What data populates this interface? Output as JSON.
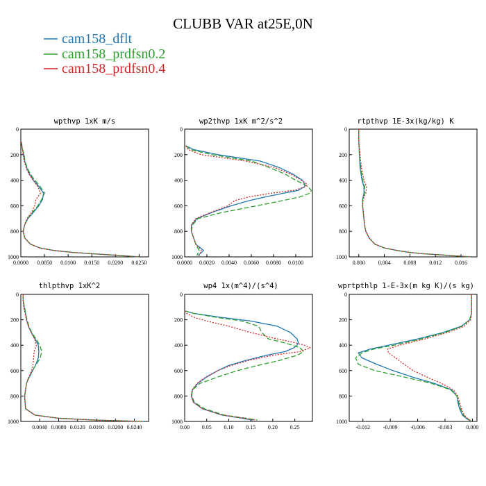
{
  "figure": {
    "title": "CLUBB VAR at25E,0N",
    "legend": [
      {
        "label": "cam158_dflt",
        "color": "#1f77b4",
        "dash": "solid"
      },
      {
        "label": "cam158_prdfsn0.2",
        "color": "#2ca02c",
        "dash": "longdash"
      },
      {
        "label": "cam158_prdfsn0.4",
        "color": "#d62728",
        "dash": "dot"
      }
    ]
  },
  "chart_data": [
    {
      "type": "line",
      "title": "wpthvp  1xK m/s",
      "xlim": [
        0,
        0.027
      ],
      "ylim": [
        1000,
        0
      ],
      "xticks": [
        0.0,
        0.005,
        0.01,
        0.015,
        0.02,
        0.025
      ],
      "xtick_labels": [
        "0.0000",
        "0.0050",
        "0.0100",
        "0.0150",
        "0.0200",
        "0.0250"
      ],
      "yticks": [
        0,
        200,
        400,
        600,
        800,
        1000
      ],
      "y": [
        100,
        150,
        200,
        250,
        300,
        350,
        400,
        450,
        500,
        550,
        600,
        650,
        700,
        750,
        800,
        850,
        900,
        930,
        950,
        965,
        975,
        985,
        992,
        1000
      ],
      "series": [
        {
          "name": "cam158_dflt",
          "x": [
            0.0001,
            0.0003,
            0.0006,
            0.0008,
            0.0012,
            0.0018,
            0.0027,
            0.0038,
            0.0048,
            0.0046,
            0.0038,
            0.0027,
            0.0015,
            0.0008,
            0.0005,
            0.0008,
            0.002,
            0.004,
            0.007,
            0.011,
            0.015,
            0.019,
            0.022,
            0.025
          ]
        },
        {
          "name": "cam158_prdfsn0.2",
          "x": [
            0.0001,
            0.0003,
            0.0007,
            0.0009,
            0.0013,
            0.002,
            0.003,
            0.0041,
            0.005,
            0.0044,
            0.0036,
            0.0025,
            0.0014,
            0.0008,
            0.0005,
            0.0008,
            0.002,
            0.004,
            0.007,
            0.011,
            0.015,
            0.019,
            0.022,
            0.025
          ]
        },
        {
          "name": "cam158_prdfsn0.4",
          "x": [
            0.0001,
            0.0003,
            0.0005,
            0.0007,
            0.0011,
            0.0017,
            0.0026,
            0.0036,
            0.0042,
            0.0032,
            0.0029,
            0.0023,
            0.0013,
            0.0008,
            0.0005,
            0.0008,
            0.002,
            0.004,
            0.007,
            0.011,
            0.015,
            0.019,
            0.022,
            0.025
          ]
        }
      ]
    },
    {
      "type": "line",
      "title": "wp2thvp  1xK m^2/s^2",
      "xlim": [
        0,
        0.0115
      ],
      "ylim": [
        1000,
        0
      ],
      "xticks": [
        0.0,
        0.002,
        0.004,
        0.006,
        0.008,
        0.01
      ],
      "xtick_labels": [
        "0.0000",
        "0.0020",
        "0.0040",
        "0.0060",
        "0.0080",
        "0.0100"
      ],
      "yticks": [
        0,
        200,
        400,
        600,
        800,
        1000
      ],
      "y": [
        130,
        160,
        200,
        250,
        300,
        350,
        400,
        430,
        450,
        480,
        500,
        530,
        560,
        600,
        650,
        700,
        750,
        800,
        850,
        900,
        950,
        990
      ],
      "series": [
        {
          "name": "cam158_dflt",
          "x": [
            0.0001,
            0.0008,
            0.003,
            0.0068,
            0.0085,
            0.0097,
            0.0106,
            0.0108,
            0.0108,
            0.0102,
            0.009,
            0.0073,
            0.0058,
            0.0042,
            0.0025,
            0.0011,
            0.0006,
            0.0006,
            0.0008,
            0.001,
            0.0017,
            0.0012
          ]
        },
        {
          "name": "cam158_prdfsn0.2",
          "x": [
            0.0001,
            0.0005,
            0.0025,
            0.006,
            0.0076,
            0.009,
            0.01,
            0.0107,
            0.0111,
            0.0114,
            0.0113,
            0.0104,
            0.0088,
            0.0065,
            0.0035,
            0.0012,
            0.0007,
            0.0006,
            0.0008,
            0.001,
            0.0013,
            0.0011
          ]
        },
        {
          "name": "cam158_prdfsn0.4",
          "x": [
            0.0001,
            0.0003,
            0.0015,
            0.0055,
            0.0081,
            0.0095,
            0.0105,
            0.011,
            0.0109,
            0.0098,
            0.0079,
            0.0058,
            0.0045,
            0.0039,
            0.0024,
            0.001,
            0.0006,
            0.0006,
            0.0008,
            0.001,
            0.0015,
            0.0013
          ]
        }
      ]
    },
    {
      "type": "line",
      "title": "rtpthvp  1E-3x(kg/kg) K",
      "xlim": [
        -0.0015,
        0.0185
      ],
      "ylim": [
        1000,
        0
      ],
      "xticks": [
        0.0,
        0.004,
        0.008,
        0.012,
        0.016
      ],
      "xtick_labels": [
        "0.000",
        "0.004",
        "0.008",
        "0.012",
        "0.016"
      ],
      "yticks": [
        0,
        200,
        400,
        600,
        800,
        1000
      ],
      "y": [
        0,
        100,
        200,
        300,
        400,
        450,
        500,
        550,
        600,
        650,
        700,
        750,
        800,
        850,
        900,
        930,
        950,
        965,
        975,
        985,
        992,
        1000
      ],
      "series": [
        {
          "name": "cam158_dflt",
          "x": [
            0.0,
            0.0,
            0.0001,
            0.0002,
            0.0005,
            0.0008,
            0.0008,
            0.0006,
            0.0006,
            0.0007,
            0.0008,
            0.0009,
            0.0011,
            0.0016,
            0.0025,
            0.004,
            0.006,
            0.008,
            0.01,
            0.013,
            0.015,
            0.0175
          ]
        },
        {
          "name": "cam158_prdfsn0.2",
          "x": [
            0.0,
            0.0,
            0.0001,
            0.0003,
            0.0006,
            0.0009,
            0.0009,
            0.0006,
            0.0006,
            0.0007,
            0.0008,
            0.0009,
            0.0011,
            0.0016,
            0.0025,
            0.004,
            0.006,
            0.008,
            0.01,
            0.013,
            0.015,
            0.0175
          ]
        },
        {
          "name": "cam158_prdfsn0.4",
          "x": [
            0.0,
            0.0,
            0.0002,
            0.0004,
            0.0008,
            0.0012,
            0.0011,
            0.0007,
            0.0006,
            0.0007,
            0.0008,
            0.0009,
            0.0011,
            0.0016,
            0.0025,
            0.004,
            0.006,
            0.008,
            0.01,
            0.013,
            0.015,
            0.0175
          ]
        }
      ]
    },
    {
      "type": "line",
      "title": "thlpthvp  1xK^2",
      "xlim": [
        0,
        0.027
      ],
      "ylim": [
        1000,
        0
      ],
      "xticks": [
        0.004,
        0.008,
        0.012,
        0.016,
        0.02,
        0.024
      ],
      "xtick_labels": [
        "0.0040",
        "0.0080",
        "0.0120",
        "0.0160",
        "0.0200",
        "0.0240"
      ],
      "yticks": [
        0,
        200,
        400,
        600,
        800,
        1000
      ],
      "y": [
        0,
        50,
        100,
        150,
        200,
        250,
        300,
        350,
        400,
        450,
        500,
        550,
        600,
        650,
        700,
        800,
        900,
        950,
        975,
        990,
        1000
      ],
      "series": [
        {
          "name": "cam158_dflt",
          "x": [
            0.0005,
            0.0005,
            0.0007,
            0.001,
            0.0012,
            0.0016,
            0.0022,
            0.003,
            0.0037,
            0.0038,
            0.0037,
            0.0032,
            0.0025,
            0.0018,
            0.0012,
            0.0008,
            0.001,
            0.003,
            0.008,
            0.016,
            0.026
          ]
        },
        {
          "name": "cam158_prdfsn0.2",
          "x": [
            0.0005,
            0.0005,
            0.0008,
            0.001,
            0.0013,
            0.0017,
            0.0023,
            0.0032,
            0.004,
            0.0044,
            0.0041,
            0.0033,
            0.0024,
            0.0017,
            0.0012,
            0.0008,
            0.001,
            0.003,
            0.008,
            0.016,
            0.026
          ]
        },
        {
          "name": "cam158_prdfsn0.4",
          "x": [
            0.0005,
            0.0005,
            0.0006,
            0.0009,
            0.0012,
            0.0016,
            0.0022,
            0.0029,
            0.0033,
            0.0028,
            0.0027,
            0.0026,
            0.0023,
            0.0017,
            0.0012,
            0.0008,
            0.001,
            0.003,
            0.008,
            0.016,
            0.026
          ]
        }
      ]
    },
    {
      "type": "line",
      "title": "wp4  1x(m^4)/(s^4)",
      "xlim": [
        0,
        0.29
      ],
      "ylim": [
        1000,
        0
      ],
      "xticks": [
        0.0,
        0.05,
        0.1,
        0.15,
        0.2,
        0.25
      ],
      "xtick_labels": [
        "0.00",
        "0.05",
        "0.10",
        "0.15",
        "0.20",
        "0.25"
      ],
      "yticks": [
        0,
        200,
        400,
        600,
        800,
        1000
      ],
      "y": [
        130,
        150,
        180,
        210,
        250,
        300,
        350,
        380,
        400,
        420,
        450,
        480,
        520,
        560,
        600,
        650,
        700,
        750,
        800,
        850,
        900,
        950,
        975,
        990
      ],
      "series": [
        {
          "name": "cam158_dflt",
          "x": [
            0.0,
            0.02,
            0.08,
            0.15,
            0.21,
            0.24,
            0.255,
            0.258,
            0.255,
            0.248,
            0.228,
            0.185,
            0.138,
            0.1,
            0.075,
            0.05,
            0.03,
            0.018,
            0.015,
            0.02,
            0.04,
            0.085,
            0.13,
            0.155
          ]
        },
        {
          "name": "cam158_prdfsn0.2",
          "x": [
            0.0,
            0.02,
            0.07,
            0.13,
            0.168,
            0.175,
            0.19,
            0.225,
            0.245,
            0.262,
            0.27,
            0.255,
            0.215,
            0.165,
            0.12,
            0.075,
            0.035,
            0.018,
            0.016,
            0.022,
            0.045,
            0.09,
            0.14,
            0.165
          ]
        },
        {
          "name": "cam158_prdfsn0.4",
          "x": [
            0.0,
            0.005,
            0.02,
            0.05,
            0.1,
            0.15,
            0.21,
            0.25,
            0.272,
            0.285,
            0.262,
            0.2,
            0.145,
            0.105,
            0.075,
            0.048,
            0.028,
            0.017,
            0.015,
            0.02,
            0.04,
            0.085,
            0.135,
            0.162
          ]
        }
      ]
    },
    {
      "type": "line",
      "title": "wprtpthlp  1-E-3x(m kg K)/(s kg)",
      "xlim": [
        -0.0135,
        0.0005
      ],
      "ylim": [
        1000,
        0
      ],
      "xticks": [
        -0.012,
        -0.009,
        -0.006,
        -0.003,
        0.0
      ],
      "xtick_labels": [
        "-0.012",
        "-0.009",
        "-0.006",
        "-0.003",
        "0.000"
      ],
      "yticks": [
        0,
        200,
        400,
        600,
        800,
        1000
      ],
      "y": [
        0,
        100,
        150,
        200,
        250,
        300,
        350,
        400,
        430,
        460,
        500,
        550,
        600,
        650,
        700,
        750,
        800,
        850,
        900,
        950,
        980,
        1000
      ],
      "series": [
        {
          "name": "cam158_dflt",
          "x": [
            -0.0001,
            -0.0001,
            -0.0001,
            -0.0003,
            -0.0012,
            -0.0032,
            -0.006,
            -0.0092,
            -0.0112,
            -0.0125,
            -0.0121,
            -0.0105,
            -0.0087,
            -0.0066,
            -0.0042,
            -0.0023,
            -0.0017,
            -0.0016,
            -0.0014,
            -0.0011,
            -0.0006,
            -0.0001
          ]
        },
        {
          "name": "cam158_prdfsn0.2",
          "x": [
            -0.0001,
            -0.0001,
            -0.0001,
            -0.0003,
            -0.0011,
            -0.003,
            -0.0056,
            -0.0086,
            -0.0108,
            -0.0121,
            -0.0128,
            -0.0125,
            -0.0107,
            -0.0075,
            -0.0045,
            -0.0024,
            -0.0017,
            -0.0015,
            -0.0013,
            -0.001,
            -0.0005,
            -0.0001
          ]
        },
        {
          "name": "cam158_prdfsn0.4",
          "x": [
            -0.0001,
            -0.0001,
            -0.0001,
            -0.0002,
            -0.0009,
            -0.0027,
            -0.0052,
            -0.008,
            -0.0093,
            -0.0092,
            -0.0084,
            -0.0075,
            -0.0065,
            -0.005,
            -0.0034,
            -0.0021,
            -0.0016,
            -0.0014,
            -0.0012,
            -0.0009,
            -0.0005,
            -0.0001
          ]
        }
      ]
    }
  ]
}
